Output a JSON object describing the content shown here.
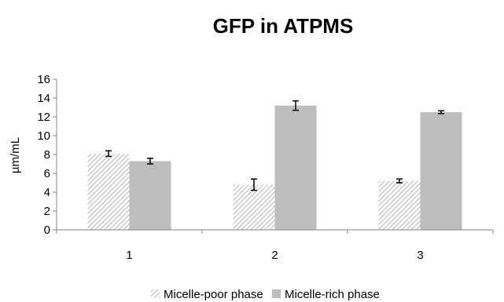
{
  "chart_data": {
    "type": "bar",
    "title": "GFP in ATPMS",
    "xlabel": "",
    "ylabel": "µm/mL",
    "categories": [
      "1",
      "2",
      "3"
    ],
    "ylim": [
      0,
      16
    ],
    "yticks": [
      "0",
      "2",
      "4",
      "6",
      "8",
      "10",
      "12",
      "14",
      "16"
    ],
    "grid": false,
    "legend_position": "bottom",
    "series": [
      {
        "name": "Micelle-poor phase",
        "values": [
          8.1,
          4.8,
          5.2
        ],
        "errors": [
          0.3,
          0.6,
          0.2
        ],
        "fill": "hatched",
        "color": "#d4d4d4"
      },
      {
        "name": "Micelle-rich phase",
        "values": [
          7.3,
          13.2,
          12.5
        ],
        "errors": [
          0.3,
          0.5,
          0.15
        ],
        "fill": "solid",
        "color": "#bdbdbd"
      }
    ]
  }
}
